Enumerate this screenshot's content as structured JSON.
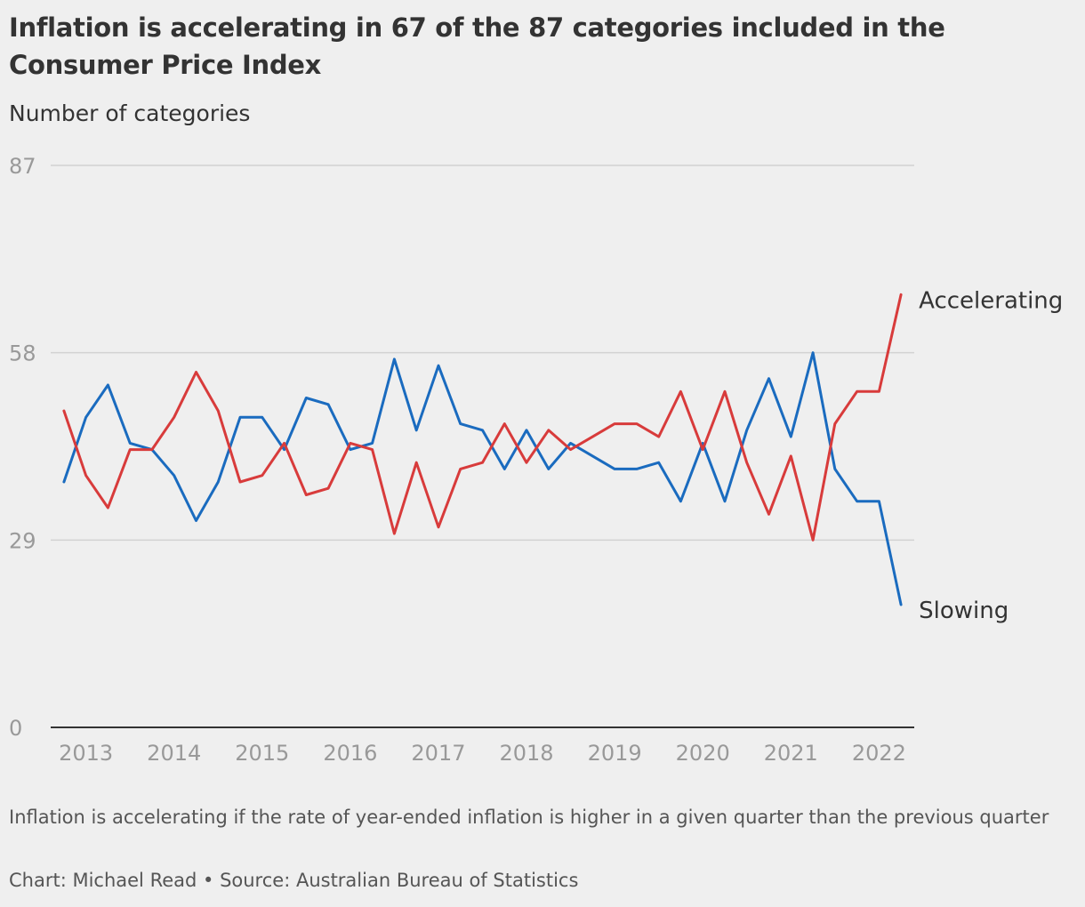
{
  "title": "Inflation is accelerating in 67 of the 87 categories included in the Consumer Price Index",
  "notes": "Inflation is accelerating if the rate of year-ended inflation is higher in a given quarter than the previous quarter",
  "source": "Chart: Michael Read • Source: Australian Bureau of Statistics",
  "colors": {
    "accelerating": "#d83b3b",
    "slowing": "#1a6bbf",
    "grid": "#d2d2d2",
    "axis": "#333333",
    "tick_text": "#999999",
    "label_text": "#333333"
  },
  "chart_data": {
    "type": "line",
    "title": "Inflation is accelerating in 67 of the 87 categories included in the Consumer Price Index",
    "ylabel": "Number of categories",
    "xlabel": "",
    "ylim": [
      0,
      87
    ],
    "xlim": [
      2012.6,
      2022.4
    ],
    "y_ticks": [
      0,
      29,
      58,
      87
    ],
    "x_ticks": [
      2013,
      2014,
      2015,
      2016,
      2017,
      2018,
      2019,
      2020,
      2021,
      2022
    ],
    "grid": true,
    "legend": "direct labels at line ends",
    "x": [
      2012.75,
      2013.0,
      2013.25,
      2013.5,
      2013.75,
      2014.0,
      2014.25,
      2014.5,
      2014.75,
      2015.0,
      2015.25,
      2015.5,
      2015.75,
      2016.0,
      2016.25,
      2016.5,
      2016.75,
      2017.0,
      2017.25,
      2017.5,
      2017.75,
      2018.0,
      2018.25,
      2018.5,
      2018.75,
      2019.0,
      2019.25,
      2019.5,
      2019.75,
      2020.0,
      2020.25,
      2020.5,
      2020.75,
      2021.0,
      2021.25,
      2021.5,
      2021.75,
      2022.0,
      2022.25
    ],
    "series": [
      {
        "name": "Accelerating",
        "values": [
          49,
          39,
          34,
          43,
          43,
          48,
          55,
          49,
          38,
          39,
          44,
          36,
          37,
          44,
          43,
          30,
          41,
          31,
          40,
          41,
          47,
          41,
          46,
          43,
          45,
          47,
          47,
          45,
          52,
          43,
          52,
          41,
          33,
          42,
          29,
          47,
          52,
          52,
          67
        ]
      },
      {
        "name": "Slowing",
        "values": [
          38,
          48,
          53,
          44,
          43,
          39,
          32,
          38,
          48,
          48,
          43,
          51,
          50,
          43,
          44,
          57,
          46,
          56,
          47,
          46,
          40,
          46,
          40,
          44,
          42,
          40,
          40,
          41,
          35,
          44,
          35,
          46,
          54,
          45,
          58,
          40,
          35,
          35,
          19
        ]
      }
    ]
  }
}
